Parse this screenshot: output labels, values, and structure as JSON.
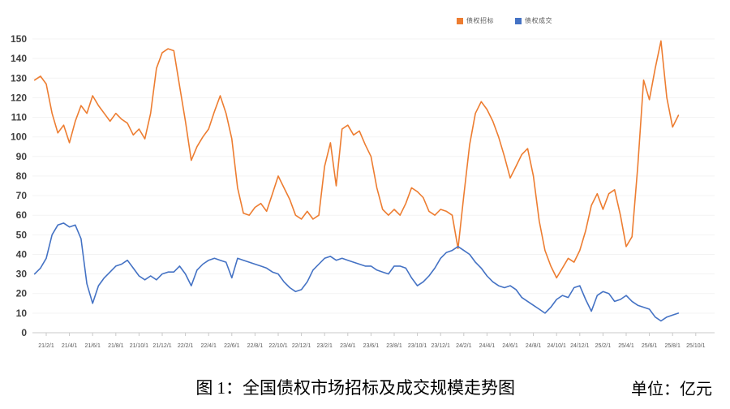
{
  "caption": {
    "figure_label": "图 1：全国债权市场招标及成交规模走势图",
    "unit_label": "单位：亿元"
  },
  "chart_data": {
    "type": "line",
    "title": "全国债权市场招标及成交规模走势图",
    "unit": "亿元",
    "grid": true,
    "legend_position": "top",
    "ylim": [
      0,
      150
    ],
    "y_ticks": [
      0,
      10,
      20,
      30,
      40,
      50,
      60,
      70,
      80,
      90,
      100,
      110,
      120,
      130,
      140,
      150
    ],
    "x_start": "2021/1/1",
    "x_step_months": 0.5,
    "x_tick_labels": [
      "21/2/1",
      "21/4/1",
      "21/6/1",
      "21/8/1",
      "21/10/1",
      "21/12/1",
      "22/2/1",
      "22/4/1",
      "22/6/1",
      "22/8/1",
      "22/10/1",
      "22/12/1",
      "23/2/1",
      "23/4/1",
      "23/6/1",
      "23/8/1",
      "23/10/1",
      "23/12/1",
      "24/2/1",
      "24/4/1",
      "24/6/1",
      "24/8/1",
      "24/10/1",
      "24/12/1",
      "25/2/1",
      "25/4/1",
      "25/6/1",
      "25/8/1",
      "25/10/1"
    ],
    "series": [
      {
        "name": "债权招标",
        "color": "#ED7D31",
        "values": [
          129,
          131,
          127,
          112,
          102,
          106,
          97,
          108,
          116,
          112,
          121,
          116,
          112,
          108,
          112,
          109,
          107,
          101,
          104,
          99,
          112,
          135,
          143,
          145,
          144,
          126,
          108,
          88,
          95,
          100,
          104,
          113,
          121,
          112,
          99,
          74,
          61,
          60,
          64,
          66,
          62,
          71,
          80,
          74,
          68,
          60,
          58,
          62,
          58,
          60,
          85,
          97,
          75,
          104,
          106,
          101,
          103,
          96,
          90,
          74,
          63,
          60,
          63,
          60,
          66,
          74,
          72,
          69,
          62,
          60,
          63,
          62,
          60,
          43,
          70,
          96,
          112,
          118,
          114,
          108,
          100,
          90,
          79,
          85,
          91,
          94,
          80,
          57,
          42,
          34,
          28,
          33,
          38,
          36,
          42,
          52,
          65,
          71,
          63,
          71,
          73,
          60,
          44,
          49,
          85,
          129,
          119,
          135,
          149,
          120,
          105,
          111
        ]
      },
      {
        "name": "债权成交",
        "color": "#4472C4",
        "values": [
          30,
          33,
          38,
          50,
          55,
          56,
          54,
          55,
          48,
          25,
          15,
          24,
          28,
          31,
          34,
          35,
          37,
          33,
          29,
          27,
          29,
          27,
          30,
          31,
          31,
          34,
          30,
          24,
          32,
          35,
          37,
          38,
          37,
          36,
          28,
          38,
          37,
          36,
          35,
          34,
          33,
          31,
          30,
          26,
          23,
          21,
          22,
          26,
          32,
          35,
          38,
          39,
          37,
          38,
          37,
          36,
          35,
          34,
          34,
          32,
          31,
          30,
          34,
          34,
          33,
          28,
          24,
          26,
          29,
          33,
          38,
          41,
          42,
          44,
          42,
          40,
          36,
          33,
          29,
          26,
          24,
          23,
          24,
          22,
          18,
          16,
          14,
          12,
          10,
          13,
          17,
          19,
          18,
          23,
          24,
          17,
          11,
          19,
          21,
          20,
          16,
          17,
          19,
          16,
          14,
          13,
          12,
          8,
          6,
          8,
          9,
          10
        ]
      }
    ]
  }
}
